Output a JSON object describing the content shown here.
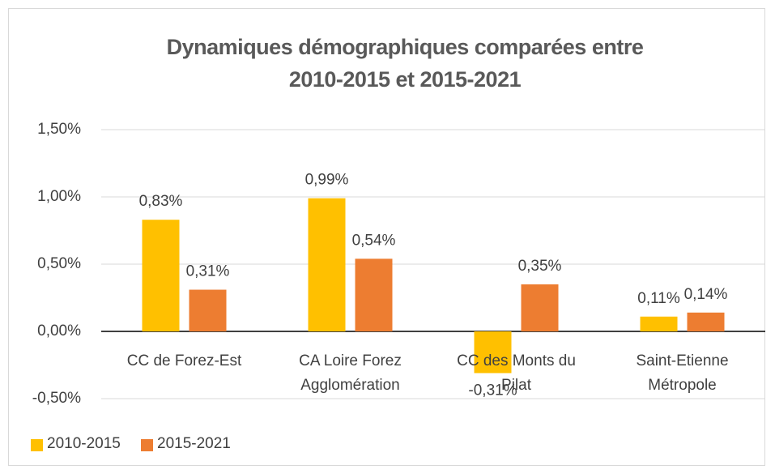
{
  "chart_data": {
    "type": "bar",
    "title": "Dynamiques démographiques comparées entre 2010-2015 et 2015-2021",
    "categories": [
      "CC de Forez-Est",
      "CA Loire Forez Agglomération",
      "CC des Monts du Pilat",
      "Saint-Etienne Métropole"
    ],
    "series": [
      {
        "name": "2010-2015",
        "color": "#FFC000",
        "values": [
          0.83,
          0.99,
          -0.31,
          0.11
        ],
        "value_labels": [
          "0,83%",
          "0,99%",
          "-0,31%",
          "0,11%"
        ]
      },
      {
        "name": "2015-2021",
        "color": "#ED7D31",
        "values": [
          0.31,
          0.54,
          0.35,
          0.14
        ],
        "value_labels": [
          "0,31%",
          "0,54%",
          "0,35%",
          "0,14%"
        ]
      }
    ],
    "ylim": [
      -0.5,
      1.5
    ],
    "yticks": [
      {
        "value": -0.5,
        "label": "-0,50%"
      },
      {
        "value": 0,
        "label": "0,00%"
      },
      {
        "value": 0.5,
        "label": "0,50%"
      },
      {
        "value": 1,
        "label": "1,00%"
      },
      {
        "value": 1.5,
        "label": "1,50%"
      }
    ],
    "grid": true,
    "legend": "bottom-left"
  }
}
